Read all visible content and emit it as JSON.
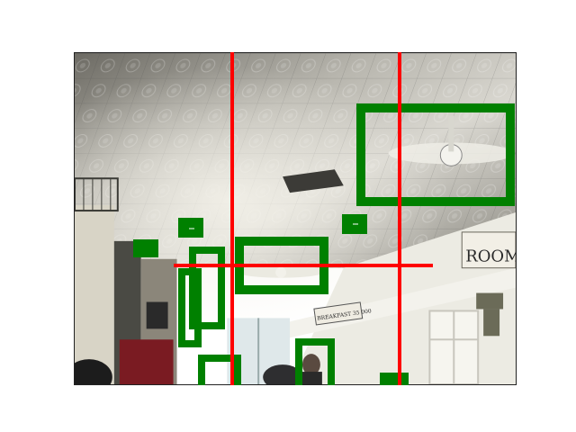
{
  "photo": {
    "description_label": "Restaurant interior with pressed tin ceiling",
    "signs": {
      "rooms": "ROOMS",
      "breakfast": "BREAKFAST 35 000"
    }
  },
  "annotations": {
    "box_color": "#008000",
    "line_color": "#ff0000",
    "vertical_lines_x": [
      258,
      444
    ],
    "horizontal_line": {
      "y": 295,
      "x_start": 193,
      "x_end": 481
    },
    "boxes": [
      {
        "name": "ceiling-fan-box",
        "filled": false
      },
      {
        "name": "center-fan-box",
        "filled": false
      },
      {
        "name": "small-box-left-a",
        "filled": true
      },
      {
        "name": "small-box-left-b",
        "filled": true
      },
      {
        "name": "small-box-center",
        "filled": true
      },
      {
        "name": "tall-box-left-outer",
        "filled": false
      },
      {
        "name": "tall-box-left-inner",
        "filled": false
      },
      {
        "name": "bottom-box-left",
        "filled": false
      },
      {
        "name": "person-box",
        "filled": false
      },
      {
        "name": "bottom-small-box-right",
        "filled": true
      }
    ]
  }
}
